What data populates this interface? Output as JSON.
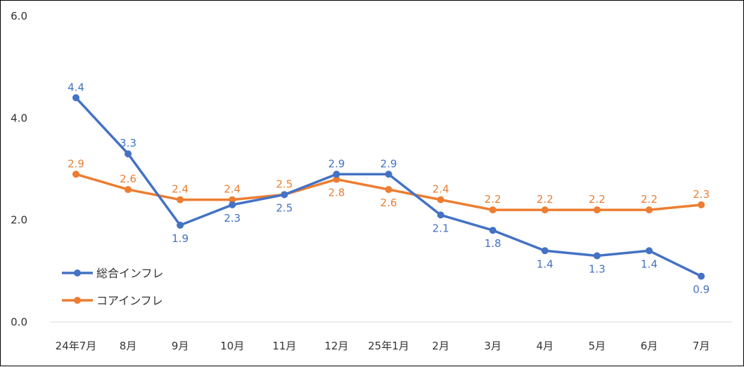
{
  "chart_data": {
    "type": "line",
    "categories": [
      "24年7月",
      "8月",
      "9月",
      "10月",
      "11月",
      "12月",
      "25年1月",
      "2月",
      "3月",
      "4月",
      "5月",
      "6月",
      "7月"
    ],
    "series": [
      {
        "name": "総合インフレ",
        "color": "#4472C4",
        "values": [
          4.4,
          3.3,
          1.9,
          2.3,
          2.5,
          2.9,
          2.9,
          2.1,
          1.8,
          1.4,
          1.3,
          1.4,
          0.9
        ],
        "labels": [
          "4.4",
          "3.3",
          "1.9",
          "2.3",
          "2.5",
          "2.9",
          "2.9",
          "2.1",
          "1.8",
          "1.4",
          "1.3",
          "1.4",
          "0.9"
        ],
        "label_positions": [
          "above",
          "above",
          "below",
          "below",
          "below",
          "above",
          "above",
          "below",
          "below",
          "below",
          "below",
          "below",
          "below"
        ]
      },
      {
        "name": "コアインフレ",
        "color": "#ED7D31",
        "values": [
          2.9,
          2.6,
          2.4,
          2.4,
          2.5,
          2.8,
          2.6,
          2.4,
          2.2,
          2.2,
          2.2,
          2.2,
          2.3
        ],
        "labels": [
          "2.9",
          "2.6",
          "2.4",
          "2.4",
          "2.5",
          "2.8",
          "2.6",
          "2.4",
          "2.2",
          "2.2",
          "2.2",
          "2.2",
          "2.3"
        ],
        "label_positions": [
          "above",
          "above",
          "above",
          "above",
          "above",
          "below",
          "below",
          "above",
          "above",
          "above",
          "above",
          "above",
          "above"
        ]
      }
    ],
    "ylim": [
      0,
      6
    ],
    "yticks": [
      "0.0",
      "2.0",
      "4.0",
      "6.0"
    ],
    "grid": false,
    "legend": "bottom-left"
  }
}
